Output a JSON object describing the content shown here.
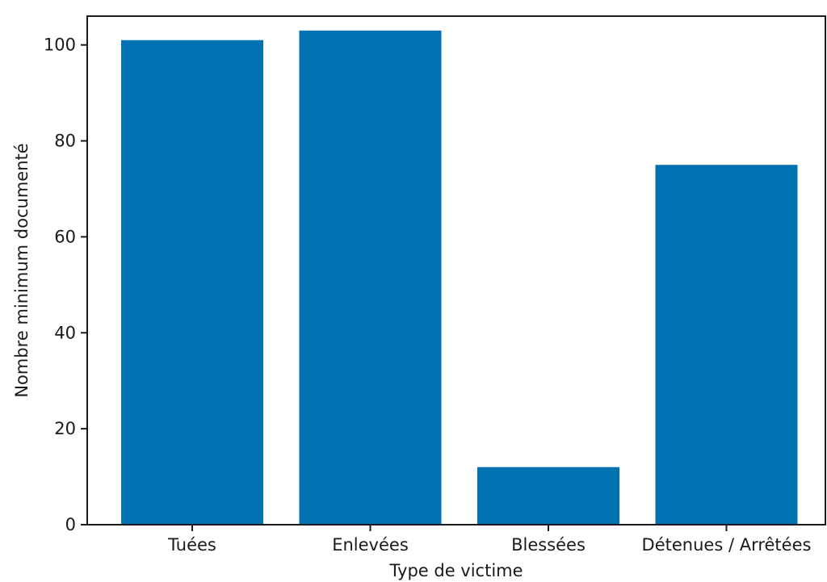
{
  "chart_data": {
    "type": "bar",
    "title": "",
    "xlabel": "Type de victime",
    "ylabel": "Nombre minimum documenté",
    "categories": [
      "Tuées",
      "Enlevées",
      "Blessées",
      "Détenues / Arrêtées"
    ],
    "values": [
      101,
      103,
      12,
      75
    ],
    "ylim": [
      0,
      106
    ],
    "yticks": [
      0,
      20,
      40,
      60,
      80,
      100
    ],
    "grid": false,
    "legend": "none",
    "bar_color": "#0072b2"
  }
}
